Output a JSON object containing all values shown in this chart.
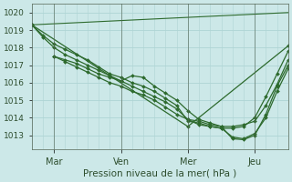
{
  "xlabel": "Pression niveau de la mer( hPa )",
  "bg_color": "#cce8e8",
  "grid_color": "#b0d8d8",
  "line_color": "#2d6a2d",
  "ylim": [
    1012.2,
    1020.5
  ],
  "yticks": [
    1013,
    1014,
    1015,
    1016,
    1017,
    1018,
    1019,
    1020
  ],
  "xtick_labels": [
    "Mar",
    "Ven",
    "Mer",
    "Jeu"
  ],
  "xtick_positions": [
    12,
    48,
    84,
    120
  ],
  "xlim": [
    0,
    138
  ],
  "vline_positions": [
    12,
    48,
    84,
    120
  ],
  "series": [
    {
      "x": [
        0,
        6,
        12,
        18,
        24,
        30,
        36,
        42,
        48,
        54,
        60,
        66,
        72,
        78,
        84,
        90,
        96,
        102,
        108,
        114,
        120,
        126,
        132,
        138
      ],
      "y": [
        1019.3,
        1018.7,
        1018.2,
        1017.9,
        1017.6,
        1017.3,
        1016.9,
        1016.5,
        1016.3,
        1016.0,
        1015.8,
        1015.5,
        1015.1,
        1014.7,
        1013.8,
        1013.7,
        1013.5,
        1013.4,
        1013.4,
        1013.5,
        1014.0,
        1015.2,
        1016.5,
        1017.8
      ]
    },
    {
      "x": [
        0,
        6,
        12,
        18,
        24,
        30,
        36,
        42,
        48,
        54,
        60,
        66,
        72,
        78,
        84,
        90,
        96,
        102,
        108,
        114,
        120,
        126,
        132,
        138
      ],
      "y": [
        1019.3,
        1018.6,
        1018.0,
        1017.6,
        1017.3,
        1017.0,
        1016.7,
        1016.4,
        1016.1,
        1015.8,
        1015.5,
        1015.2,
        1014.9,
        1014.5,
        1013.9,
        1013.8,
        1013.6,
        1013.5,
        1013.5,
        1013.6,
        1013.8,
        1014.7,
        1015.9,
        1017.3
      ]
    },
    {
      "x": [
        12,
        18,
        24,
        30,
        36,
        42,
        48,
        54,
        60,
        66,
        72,
        78,
        84,
        90,
        96,
        102,
        108,
        114,
        120,
        126,
        132,
        138
      ],
      "y": [
        1017.5,
        1017.3,
        1017.1,
        1016.8,
        1016.5,
        1016.3,
        1016.1,
        1016.4,
        1016.3,
        1015.8,
        1015.4,
        1015.0,
        1014.4,
        1013.9,
        1013.7,
        1013.5,
        1012.8,
        1012.75,
        1013.0,
        1014.2,
        1015.8,
        1017.0
      ]
    },
    {
      "x": [
        12,
        18,
        24,
        30,
        36,
        42,
        48,
        54,
        60,
        66,
        72,
        78,
        84,
        90,
        96,
        102,
        108,
        114,
        120,
        126,
        132,
        138
      ],
      "y": [
        1017.5,
        1017.2,
        1016.9,
        1016.6,
        1016.3,
        1016.0,
        1015.8,
        1015.5,
        1015.3,
        1015.0,
        1014.6,
        1014.2,
        1013.9,
        1013.6,
        1013.5,
        1013.4,
        1012.9,
        1012.8,
        1013.1,
        1014.0,
        1015.5,
        1016.8
      ]
    },
    {
      "x": [
        0,
        138
      ],
      "y": [
        1019.3,
        1020.0
      ]
    },
    {
      "x": [
        0,
        84,
        138
      ],
      "y": [
        1019.3,
        1013.5,
        1018.1
      ]
    }
  ],
  "series_styles": [
    {
      "lw": 0.9,
      "marker": "D",
      "ms": 2.0
    },
    {
      "lw": 0.9,
      "marker": "D",
      "ms": 2.0
    },
    {
      "lw": 0.9,
      "marker": "D",
      "ms": 2.0
    },
    {
      "lw": 0.9,
      "marker": "D",
      "ms": 2.0
    },
    {
      "lw": 0.8,
      "marker": null,
      "ms": 0
    },
    {
      "lw": 0.9,
      "marker": "D",
      "ms": 2.0
    }
  ]
}
